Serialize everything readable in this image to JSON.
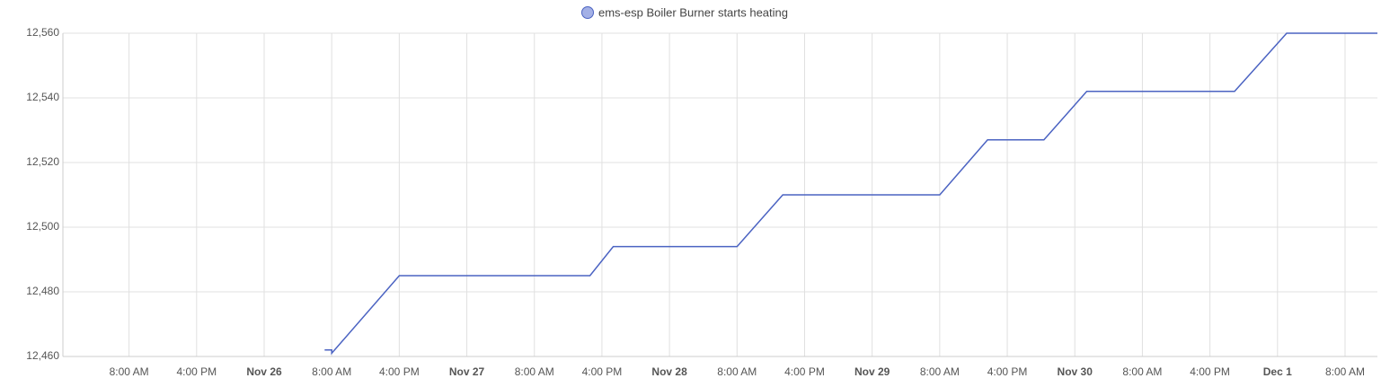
{
  "chart_data": {
    "type": "line",
    "series": [
      {
        "name": "ems-esp Boiler Burner starts heating",
        "color": "#4b63c2",
        "x": [
          "Nov 26 07:10",
          "Nov 26 08:00",
          "Nov 26 08:00",
          "Nov 26 16:00",
          "Nov 27 14:35",
          "Nov 27 17:20",
          "Nov 28 08:00",
          "Nov 28 13:25",
          "Nov 29 08:00",
          "Nov 29 13:40",
          "Nov 29 20:20",
          "Nov 30 01:25",
          "Nov 30 18:55",
          "Dec 1 01:05",
          "Dec 1 11:50"
        ],
        "values": [
          12462,
          12462,
          12461,
          12485,
          12485,
          12494,
          12494,
          12510,
          12510,
          12527,
          12527,
          12542,
          12542,
          12560,
          12560
        ]
      }
    ],
    "xlim": [
      "Nov 25 00:10",
      "Dec 1 11:50"
    ],
    "xticks": [
      {
        "value": "Nov 25 08:00",
        "label": "8:00 AM"
      },
      {
        "value": "Nov 25 16:00",
        "label": "4:00 PM"
      },
      {
        "value": "Nov 26 00:00",
        "label": "Nov 26"
      },
      {
        "value": "Nov 26 08:00",
        "label": "8:00 AM"
      },
      {
        "value": "Nov 26 16:00",
        "label": "4:00 PM"
      },
      {
        "value": "Nov 27 00:00",
        "label": "Nov 27"
      },
      {
        "value": "Nov 27 08:00",
        "label": "8:00 AM"
      },
      {
        "value": "Nov 27 16:00",
        "label": "4:00 PM"
      },
      {
        "value": "Nov 28 00:00",
        "label": "Nov 28"
      },
      {
        "value": "Nov 28 08:00",
        "label": "8:00 AM"
      },
      {
        "value": "Nov 28 16:00",
        "label": "4:00 PM"
      },
      {
        "value": "Nov 29 00:00",
        "label": "Nov 29"
      },
      {
        "value": "Nov 29 08:00",
        "label": "8:00 AM"
      },
      {
        "value": "Nov 29 16:00",
        "label": "4:00 PM"
      },
      {
        "value": "Nov 30 00:00",
        "label": "Nov 30"
      },
      {
        "value": "Nov 30 08:00",
        "label": "8:00 AM"
      },
      {
        "value": "Nov 30 16:00",
        "label": "4:00 PM"
      },
      {
        "value": "Dec 1 00:00",
        "label": "Dec 1"
      },
      {
        "value": "Dec 1 08:00",
        "label": "8:00 AM"
      }
    ],
    "ylim": [
      12460,
      12560
    ],
    "yticks": [
      {
        "value": 12460,
        "label": "12,460"
      },
      {
        "value": 12480,
        "label": "12,480"
      },
      {
        "value": 12500,
        "label": "12,500"
      },
      {
        "value": 12520,
        "label": "12,520"
      },
      {
        "value": 12540,
        "label": "12,540"
      },
      {
        "value": 12560,
        "label": "12,560"
      }
    ],
    "grid": true
  }
}
